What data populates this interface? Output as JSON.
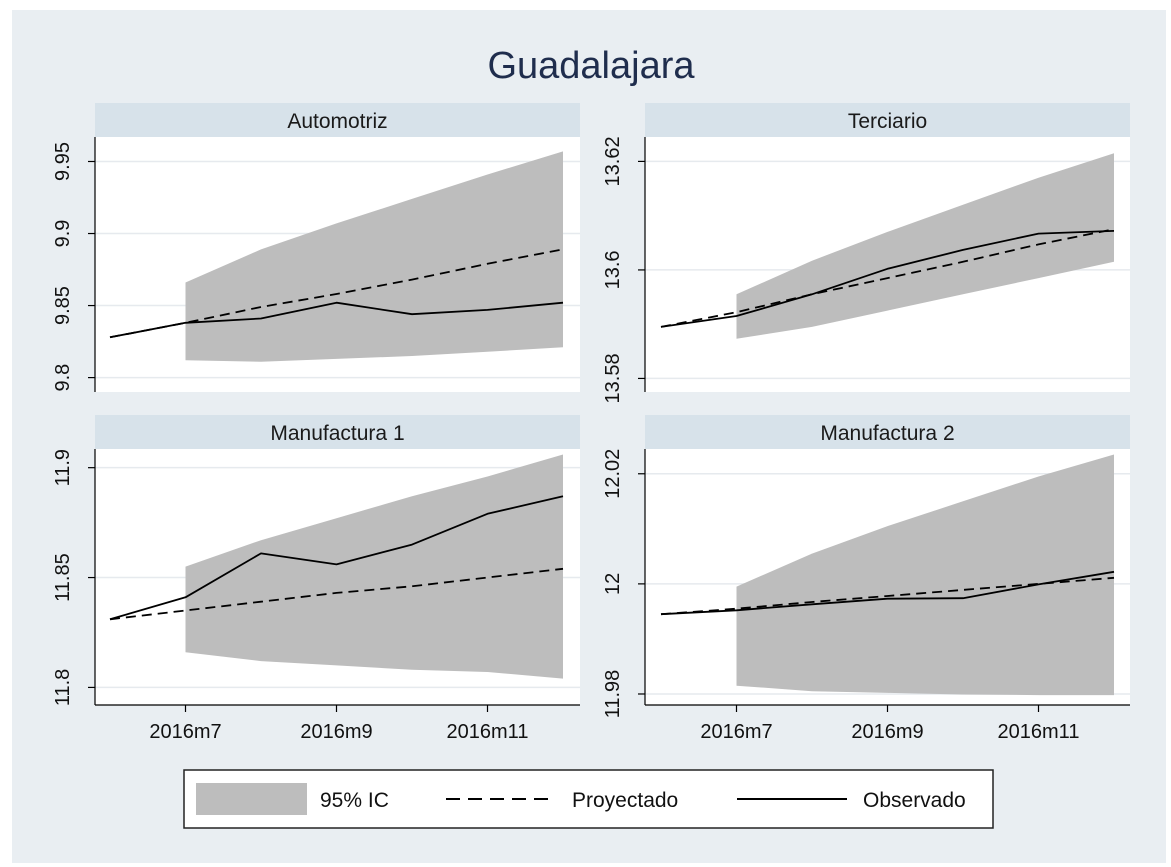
{
  "title": "Guadalajara",
  "colors": {
    "panel_background": "#e9eef2",
    "plot_background": "#ffffff",
    "strip_background": "#d7e2ea",
    "ci_band": "#bdbdbd",
    "grid": "#e6eaee",
    "line": "#000000",
    "title": "#1f2d4d"
  },
  "legend": {
    "placement": "bottom",
    "items": [
      {
        "label": "95% IC",
        "style": "band"
      },
      {
        "label": "Proyectado",
        "style": "dashed"
      },
      {
        "label": "Observado",
        "style": "solid"
      }
    ]
  },
  "chart_data": [
    {
      "type": "area",
      "title": "Automotriz",
      "x": [
        "2016m6",
        "2016m7",
        "2016m8",
        "2016m9",
        "2016m10",
        "2016m11",
        "2016m12"
      ],
      "x_ticks": [
        "2016m7",
        "2016m9",
        "2016m11"
      ],
      "yticks": [
        9.8,
        9.85,
        9.9,
        9.95
      ],
      "ytick_labels": [
        "9.8",
        "9.85",
        "9.9",
        "9.95"
      ],
      "ylim": [
        9.79,
        9.967
      ],
      "ci_upper": [
        null,
        9.866,
        9.889,
        9.907,
        9.924,
        9.941,
        9.957
      ],
      "ci_lower": [
        null,
        9.812,
        9.811,
        9.813,
        9.815,
        9.818,
        9.821
      ],
      "series": [
        {
          "name": "Proyectado",
          "style": "dashed",
          "values": [
            9.828,
            9.838,
            9.849,
            9.858,
            9.868,
            9.879,
            9.889
          ]
        },
        {
          "name": "Observado",
          "style": "solid",
          "values": [
            9.828,
            9.838,
            9.841,
            9.852,
            9.844,
            9.847,
            9.852
          ]
        }
      ]
    },
    {
      "type": "area",
      "title": "Terciario",
      "x": [
        "2016m6",
        "2016m7",
        "2016m8",
        "2016m9",
        "2016m10",
        "2016m11",
        "2016m12"
      ],
      "x_ticks": [
        "2016m7",
        "2016m9",
        "2016m11"
      ],
      "yticks": [
        13.58,
        13.6,
        13.62
      ],
      "ytick_labels": [
        "13.58",
        "13.6",
        "13.62"
      ],
      "ylim": [
        13.5775,
        13.6245
      ],
      "ci_upper": [
        null,
        13.5955,
        13.6017,
        13.607,
        13.612,
        13.617,
        13.6215
      ],
      "ci_lower": [
        null,
        13.5873,
        13.5895,
        13.5925,
        13.5955,
        13.5985,
        13.6015
      ],
      "series": [
        {
          "name": "Proyectado",
          "style": "dashed",
          "values": [
            13.5895,
            13.5922,
            13.5955,
            13.5985,
            13.6015,
            13.6047,
            13.6075
          ]
        },
        {
          "name": "Observado",
          "style": "solid",
          "values": [
            13.5895,
            13.5915,
            13.5955,
            13.6002,
            13.6037,
            13.6067,
            13.6072
          ]
        }
      ]
    },
    {
      "type": "area",
      "title": "Manufactura 1",
      "x": [
        "2016m6",
        "2016m7",
        "2016m8",
        "2016m9",
        "2016m10",
        "2016m11",
        "2016m12"
      ],
      "x_ticks": [
        "2016m7",
        "2016m9",
        "2016m11"
      ],
      "yticks": [
        11.8,
        11.85,
        11.9
      ],
      "ytick_labels": [
        "11.8",
        "11.85",
        "11.9"
      ],
      "ylim": [
        11.792,
        11.9085
      ],
      "ci_upper": [
        null,
        11.855,
        11.867,
        11.877,
        11.887,
        11.896,
        11.906
      ],
      "ci_lower": [
        null,
        11.816,
        11.812,
        11.81,
        11.808,
        11.807,
        11.804
      ],
      "series": [
        {
          "name": "Proyectado",
          "style": "dashed",
          "values": [
            11.831,
            11.835,
            11.839,
            11.843,
            11.846,
            11.85,
            11.854
          ]
        },
        {
          "name": "Observado",
          "style": "solid",
          "values": [
            11.831,
            11.841,
            11.861,
            11.856,
            11.865,
            11.879,
            11.887
          ]
        }
      ]
    },
    {
      "type": "area",
      "title": "Manufactura 2",
      "x": [
        "2016m6",
        "2016m7",
        "2016m8",
        "2016m9",
        "2016m10",
        "2016m11",
        "2016m12"
      ],
      "x_ticks": [
        "2016m7",
        "2016m9",
        "2016m11"
      ],
      "yticks": [
        11.98,
        12,
        12.02
      ],
      "ytick_labels": [
        "11.98",
        "12",
        "12.02"
      ],
      "ylim": [
        11.978,
        12.0245
      ],
      "ci_upper": [
        null,
        11.9995,
        12.0055,
        12.0105,
        12.015,
        12.0195,
        12.0235
      ],
      "ci_lower": [
        null,
        11.9815,
        11.9805,
        11.9802,
        11.9799,
        11.9798,
        11.9798
      ],
      "series": [
        {
          "name": "Proyectado",
          "style": "dashed",
          "values": [
            11.9945,
            11.9955,
            11.9967,
            11.9978,
            11.9989,
            12.0,
            12.0011
          ]
        },
        {
          "name": "Observado",
          "style": "solid",
          "values": [
            11.9945,
            11.9952,
            11.9963,
            11.9973,
            11.9974,
            11.9999,
            12.0022
          ]
        }
      ]
    }
  ]
}
